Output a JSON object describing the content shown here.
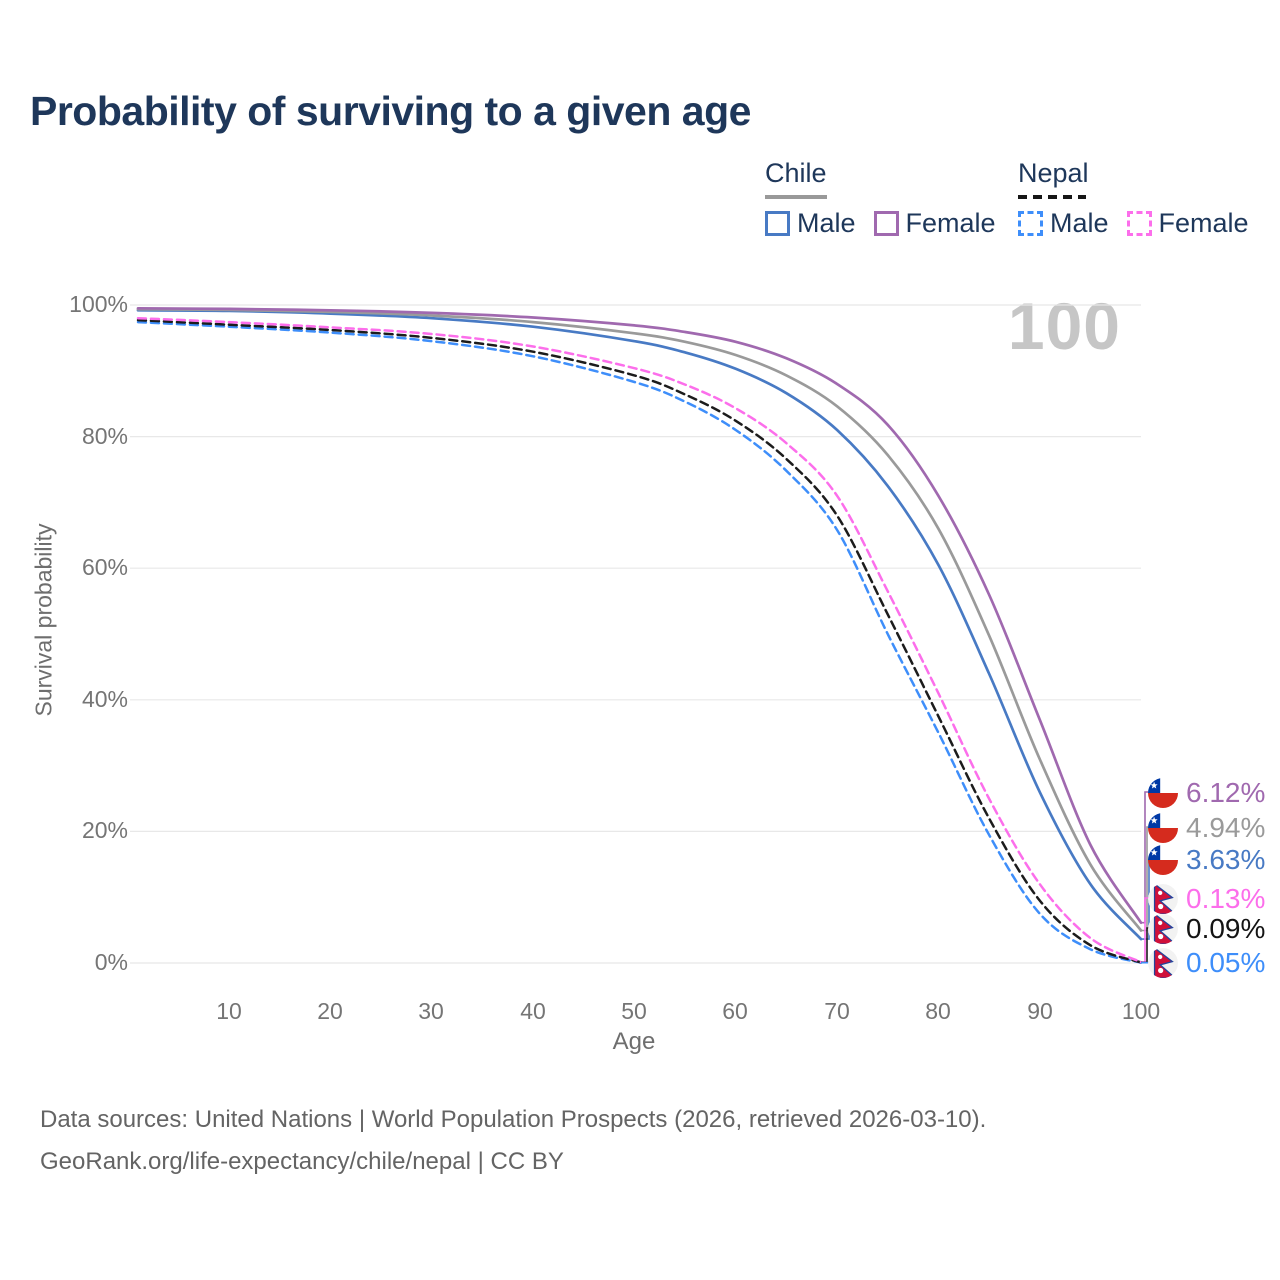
{
  "title": "Probability of surviving to a given age",
  "watermark": "100",
  "legend": {
    "chile": {
      "label": "Chile",
      "male": "Male",
      "female": "Female"
    },
    "nepal": {
      "label": "Nepal",
      "male": "Male",
      "female": "Female"
    }
  },
  "axis": {
    "y_title": "Survival probability",
    "x_title": "Age",
    "y_ticks": [
      "100%",
      "80%",
      "60%",
      "40%",
      "20%",
      "0%"
    ],
    "x_ticks": [
      "10",
      "20",
      "30",
      "40",
      "50",
      "60",
      "70",
      "80",
      "90",
      "100"
    ]
  },
  "end_labels": [
    {
      "flag": "chile",
      "series": "chile_female",
      "value": "6.12%"
    },
    {
      "flag": "chile",
      "series": "chile_total",
      "value": "4.94%"
    },
    {
      "flag": "chile",
      "series": "chile_male",
      "value": "3.63%"
    },
    {
      "flag": "nepal",
      "series": "nepal_female",
      "value": "0.13%"
    },
    {
      "flag": "nepal",
      "series": "nepal_total",
      "value": "0.09%"
    },
    {
      "flag": "nepal",
      "series": "nepal_male",
      "value": "0.05%"
    }
  ],
  "footer": {
    "line1": "Data sources: United Nations | World Population Prospects (2026, retrieved 2026-03-10).",
    "line2": "GeoRank.org/life-expectancy/chile/nepal | CC BY"
  },
  "chart_data": {
    "type": "line",
    "title": "Probability of surviving to a given age",
    "xlabel": "Age",
    "ylabel": "Survival probability",
    "xlim": [
      1,
      100
    ],
    "ylim": [
      0,
      100
    ],
    "grid": "horizontal",
    "legend_position": "top-right",
    "x": [
      1,
      10,
      20,
      30,
      40,
      50,
      55,
      60,
      65,
      70,
      75,
      80,
      85,
      90,
      95,
      100
    ],
    "series": [
      {
        "key": "chile_male",
        "name": "Chile Male",
        "country": "Chile",
        "sex": "Male",
        "color": "#487ac4",
        "style": "solid",
        "values": [
          99.2,
          99.1,
          98.7,
          98.0,
          96.7,
          94.5,
          92.8,
          90.3,
          86.6,
          81.0,
          72.5,
          60.5,
          44.0,
          26.0,
          12.0,
          3.63
        ],
        "end_value_pct": 3.63
      },
      {
        "key": "chile_total",
        "name": "Chile Both sexes",
        "country": "Chile",
        "sex": "Both sexes",
        "color": "#9a9a9a",
        "style": "solid",
        "values": [
          99.35,
          99.25,
          98.95,
          98.4,
          97.4,
          95.7,
          94.4,
          92.4,
          89.3,
          84.6,
          77.2,
          66.0,
          49.8,
          31.0,
          15.0,
          4.94
        ],
        "end_value_pct": 4.94
      },
      {
        "key": "chile_female",
        "name": "Chile Female",
        "country": "Chile",
        "sex": "Female",
        "color": "#a069af",
        "style": "solid",
        "values": [
          99.5,
          99.4,
          99.2,
          98.8,
          98.1,
          96.9,
          95.9,
          94.4,
          91.9,
          88.0,
          81.8,
          71.0,
          56.0,
          37.0,
          18.0,
          6.12
        ],
        "end_value_pct": 6.12
      },
      {
        "key": "nepal_male",
        "name": "Nepal Male",
        "country": "Nepal",
        "sex": "Male",
        "color": "#3e8efa",
        "style": "dashed",
        "values": [
          97.4,
          96.7,
          95.8,
          94.5,
          92.2,
          88.3,
          85.3,
          81.0,
          74.8,
          65.8,
          50.0,
          35.0,
          19.5,
          7.5,
          2.1,
          0.05
        ],
        "end_value_pct": 0.05
      },
      {
        "key": "nepal_total",
        "name": "Nepal Both sexes",
        "country": "Nepal",
        "sex": "Both sexes",
        "color": "#1c1c1c",
        "style": "dashed",
        "values": [
          97.7,
          97.0,
          96.2,
          95.0,
          92.9,
          89.3,
          86.4,
          82.4,
          76.6,
          68.0,
          53.0,
          37.5,
          22.0,
          9.5,
          2.7,
          0.09
        ],
        "end_value_pct": 0.09
      },
      {
        "key": "nepal_female",
        "name": "Nepal Female",
        "country": "Nepal",
        "sex": "Female",
        "color": "#fc6eeb",
        "style": "dashed",
        "values": [
          98.0,
          97.4,
          96.6,
          95.6,
          93.7,
          90.4,
          87.9,
          84.3,
          79.0,
          71.0,
          56.5,
          41.0,
          25.0,
          12.0,
          3.8,
          0.13
        ],
        "end_value_pct": 0.13
      }
    ]
  }
}
